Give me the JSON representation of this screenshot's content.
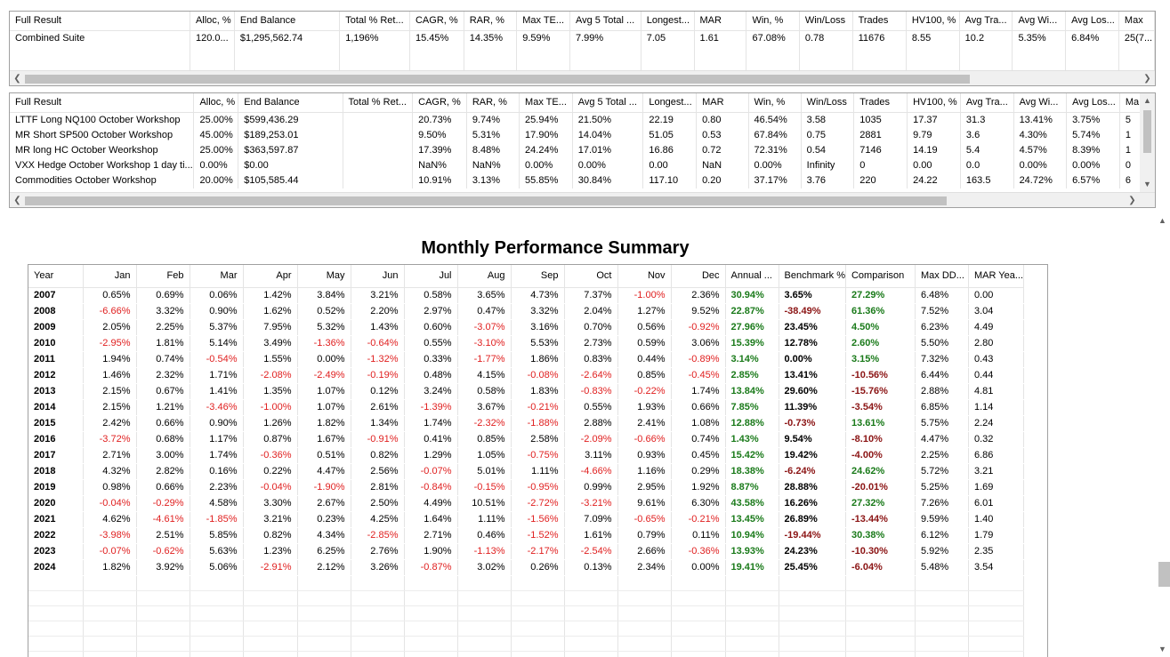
{
  "top_table": {
    "columns": [
      "Full Result",
      "Alloc, %",
      "End Balance",
      "Total % Ret...",
      "CAGR, %",
      "RAR, %",
      "Max TE...",
      "Avg 5 Total ...",
      "Longest...",
      "MAR",
      "Win, %",
      "Win/Loss",
      "Trades",
      "HV100, %",
      "Avg Tra...",
      "Avg Wi...",
      "Avg Los...",
      "Max"
    ],
    "rows": [
      [
        "Combined Suite",
        "120.0...",
        "$1,295,562.74",
        "1,196%",
        "15.45%",
        "14.35%",
        "9.59%",
        "7.99%",
        "7.05",
        "1.61",
        "67.08%",
        "0.78",
        "11676",
        "8.55",
        "10.2",
        "5.35%",
        "6.84%",
        "25(7..."
      ]
    ]
  },
  "system_table": {
    "columns": [
      "Full Result",
      "Alloc, %",
      "End Balance",
      "Total % Ret...",
      "CAGR, %",
      "RAR, %",
      "Max TE...",
      "Avg 5 Total ...",
      "Longest...",
      "MAR",
      "Win, %",
      "Win/Loss",
      "Trades",
      "HV100, %",
      "Avg Tra...",
      "Avg Wi...",
      "Avg Los...",
      "Ma"
    ],
    "rows": [
      [
        "LTTF Long NQ100 October Workshop",
        "25.00%",
        "$599,436.29",
        "",
        "20.73%",
        "9.74%",
        "25.94%",
        "21.50%",
        "22.19",
        "0.80",
        "46.54%",
        "3.58",
        "1035",
        "17.37",
        "31.3",
        "13.41%",
        "3.75%",
        "5"
      ],
      [
        "MR Short SP500 October Workshop",
        "45.00%",
        "$189,253.01",
        "",
        "9.50%",
        "5.31%",
        "17.90%",
        "14.04%",
        "51.05",
        "0.53",
        "67.84%",
        "0.75",
        "2881",
        "9.79",
        "3.6",
        "4.30%",
        "5.74%",
        "1"
      ],
      [
        "MR long HC October Weorkshop",
        "25.00%",
        "$363,597.87",
        "",
        "17.39%",
        "8.48%",
        "24.24%",
        "17.01%",
        "16.86",
        "0.72",
        "72.31%",
        "0.54",
        "7146",
        "14.19",
        "5.4",
        "4.57%",
        "8.39%",
        "1"
      ],
      [
        "VXX Hedge October Workshop 1 day ti...",
        "0.00%",
        "$0.00",
        "",
        "NaN%",
        "NaN%",
        "0.00%",
        "0.00%",
        "0.00",
        "NaN",
        "0.00%",
        "Infinity",
        "0",
        "0.00",
        "0.0",
        "0.00%",
        "0.00%",
        "0"
      ],
      [
        "Commodities October Workshop",
        "20.00%",
        "$105,585.44",
        "",
        "10.91%",
        "3.13%",
        "55.85%",
        "30.84%",
        "117.10",
        "0.20",
        "37.17%",
        "3.76",
        "220",
        "24.22",
        "163.5",
        "24.72%",
        "6.57%",
        "6"
      ]
    ]
  },
  "monthly": {
    "title": "Monthly Performance Summary",
    "columns": [
      "Year",
      "Jan",
      "Feb",
      "Mar",
      "Apr",
      "May",
      "Jun",
      "Jul",
      "Aug",
      "Sep",
      "Oct",
      "Nov",
      "Dec",
      "Annual ...",
      "Benchmark %",
      "Comparison",
      "Max DD...",
      "MAR Yea..."
    ],
    "rows": [
      [
        "2007",
        "0.65%",
        "0.69%",
        "0.06%",
        "1.42%",
        "3.84%",
        "3.21%",
        "0.58%",
        "3.65%",
        "4.73%",
        "7.37%",
        "-1.00%",
        "2.36%",
        "30.94%",
        "3.65%",
        "27.29%",
        "6.48%",
        "0.00"
      ],
      [
        "2008",
        "-6.66%",
        "3.32%",
        "0.90%",
        "1.62%",
        "0.52%",
        "2.20%",
        "2.97%",
        "0.47%",
        "3.32%",
        "2.04%",
        "1.27%",
        "9.52%",
        "22.87%",
        "-38.49%",
        "61.36%",
        "7.52%",
        "3.04"
      ],
      [
        "2009",
        "2.05%",
        "2.25%",
        "5.37%",
        "7.95%",
        "5.32%",
        "1.43%",
        "0.60%",
        "-3.07%",
        "3.16%",
        "0.70%",
        "0.56%",
        "-0.92%",
        "27.96%",
        "23.45%",
        "4.50%",
        "6.23%",
        "4.49"
      ],
      [
        "2010",
        "-2.95%",
        "1.81%",
        "5.14%",
        "3.49%",
        "-1.36%",
        "-0.64%",
        "0.55%",
        "-3.10%",
        "5.53%",
        "2.73%",
        "0.59%",
        "3.06%",
        "15.39%",
        "12.78%",
        "2.60%",
        "5.50%",
        "2.80"
      ],
      [
        "2011",
        "1.94%",
        "0.74%",
        "-0.54%",
        "1.55%",
        "0.00%",
        "-1.32%",
        "0.33%",
        "-1.77%",
        "1.86%",
        "0.83%",
        "0.44%",
        "-0.89%",
        "3.14%",
        "0.00%",
        "3.15%",
        "7.32%",
        "0.43"
      ],
      [
        "2012",
        "1.46%",
        "2.32%",
        "1.71%",
        "-2.08%",
        "-2.49%",
        "-0.19%",
        "0.48%",
        "4.15%",
        "-0.08%",
        "-2.64%",
        "0.85%",
        "-0.45%",
        "2.85%",
        "13.41%",
        "-10.56%",
        "6.44%",
        "0.44"
      ],
      [
        "2013",
        "2.15%",
        "0.67%",
        "1.41%",
        "1.35%",
        "1.07%",
        "0.12%",
        "3.24%",
        "0.58%",
        "1.83%",
        "-0.83%",
        "-0.22%",
        "1.74%",
        "13.84%",
        "29.60%",
        "-15.76%",
        "2.88%",
        "4.81"
      ],
      [
        "2014",
        "2.15%",
        "1.21%",
        "-3.46%",
        "-1.00%",
        "1.07%",
        "2.61%",
        "-1.39%",
        "3.67%",
        "-0.21%",
        "0.55%",
        "1.93%",
        "0.66%",
        "7.85%",
        "11.39%",
        "-3.54%",
        "6.85%",
        "1.14"
      ],
      [
        "2015",
        "2.42%",
        "0.66%",
        "0.90%",
        "1.26%",
        "1.82%",
        "1.34%",
        "1.74%",
        "-2.32%",
        "-1.88%",
        "2.88%",
        "2.41%",
        "1.08%",
        "12.88%",
        "-0.73%",
        "13.61%",
        "5.75%",
        "2.24"
      ],
      [
        "2016",
        "-3.72%",
        "0.68%",
        "1.17%",
        "0.87%",
        "1.67%",
        "-0.91%",
        "0.41%",
        "0.85%",
        "2.58%",
        "-2.09%",
        "-0.66%",
        "0.74%",
        "1.43%",
        "9.54%",
        "-8.10%",
        "4.47%",
        "0.32"
      ],
      [
        "2017",
        "2.71%",
        "3.00%",
        "1.74%",
        "-0.36%",
        "0.51%",
        "0.82%",
        "1.29%",
        "1.05%",
        "-0.75%",
        "3.11%",
        "0.93%",
        "0.45%",
        "15.42%",
        "19.42%",
        "-4.00%",
        "2.25%",
        "6.86"
      ],
      [
        "2018",
        "4.32%",
        "2.82%",
        "0.16%",
        "0.22%",
        "4.47%",
        "2.56%",
        "-0.07%",
        "5.01%",
        "1.11%",
        "-4.66%",
        "1.16%",
        "0.29%",
        "18.38%",
        "-6.24%",
        "24.62%",
        "5.72%",
        "3.21"
      ],
      [
        "2019",
        "0.98%",
        "0.66%",
        "2.23%",
        "-0.04%",
        "-1.90%",
        "2.81%",
        "-0.84%",
        "-0.15%",
        "-0.95%",
        "0.99%",
        "2.95%",
        "1.92%",
        "8.87%",
        "28.88%",
        "-20.01%",
        "5.25%",
        "1.69"
      ],
      [
        "2020",
        "-0.04%",
        "-0.29%",
        "4.58%",
        "3.30%",
        "2.67%",
        "2.50%",
        "4.49%",
        "10.51%",
        "-2.72%",
        "-3.21%",
        "9.61%",
        "6.30%",
        "43.58%",
        "16.26%",
        "27.32%",
        "7.26%",
        "6.01"
      ],
      [
        "2021",
        "4.62%",
        "-4.61%",
        "-1.85%",
        "3.21%",
        "0.23%",
        "4.25%",
        "1.64%",
        "1.11%",
        "-1.56%",
        "7.09%",
        "-0.65%",
        "-0.21%",
        "13.45%",
        "26.89%",
        "-13.44%",
        "9.59%",
        "1.40"
      ],
      [
        "2022",
        "-3.98%",
        "2.51%",
        "5.85%",
        "0.82%",
        "4.34%",
        "-2.85%",
        "2.71%",
        "0.46%",
        "-1.52%",
        "1.61%",
        "0.79%",
        "0.11%",
        "10.94%",
        "-19.44%",
        "30.38%",
        "6.12%",
        "1.79"
      ],
      [
        "2023",
        "-0.07%",
        "-0.62%",
        "5.63%",
        "1.23%",
        "6.25%",
        "2.76%",
        "1.90%",
        "-1.13%",
        "-2.17%",
        "-2.54%",
        "2.66%",
        "-0.36%",
        "13.93%",
        "24.23%",
        "-10.30%",
        "5.92%",
        "2.35"
      ],
      [
        "2024",
        "1.82%",
        "3.92%",
        "5.06%",
        "-2.91%",
        "2.12%",
        "3.26%",
        "-0.87%",
        "3.02%",
        "0.26%",
        "0.13%",
        "2.34%",
        "0.00%",
        "19.41%",
        "25.45%",
        "-6.04%",
        "5.48%",
        "3.54"
      ]
    ]
  },
  "colors": {
    "negative": "#e02020",
    "positive_bold": "#1a7a1a",
    "negative_bold": "#8b1414"
  },
  "icons": {
    "scroll_left": "chevron-left-icon",
    "scroll_right": "chevron-right-icon",
    "scroll_up": "chevron-up-icon",
    "scroll_down": "chevron-down-icon"
  }
}
